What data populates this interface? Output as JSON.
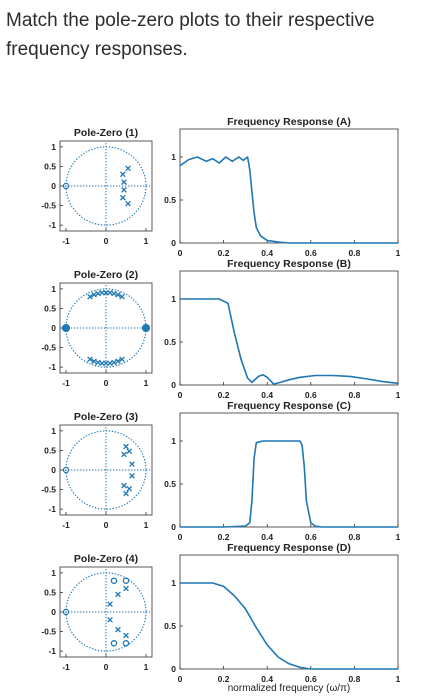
{
  "question": "Match the pole-zero plots to their respective frequency responses.",
  "colors": {
    "accent": "#1f77b4",
    "axis": "#333333",
    "text": "#222222"
  },
  "panels": [
    {
      "pz_title": "Pole-Zero (1)",
      "fr_title": "Frequency Response (A)",
      "poles": [
        [
          0.55,
          0.45
        ],
        [
          0.42,
          0.3
        ],
        [
          0.45,
          0.1
        ],
        [
          0.45,
          -0.1
        ],
        [
          0.42,
          -0.3
        ],
        [
          0.55,
          -0.45
        ]
      ],
      "zeros": [
        [
          -1,
          0
        ]
      ],
      "response": [
        [
          0,
          0.9
        ],
        [
          0.04,
          0.97
        ],
        [
          0.08,
          1.0
        ],
        [
          0.12,
          0.95
        ],
        [
          0.15,
          0.98
        ],
        [
          0.18,
          0.93
        ],
        [
          0.21,
          1.0
        ],
        [
          0.24,
          0.95
        ],
        [
          0.27,
          1.0
        ],
        [
          0.29,
          0.96
        ],
        [
          0.31,
          1.0
        ],
        [
          0.32,
          0.85
        ],
        [
          0.33,
          0.6
        ],
        [
          0.34,
          0.35
        ],
        [
          0.35,
          0.18
        ],
        [
          0.37,
          0.08
        ],
        [
          0.4,
          0.03
        ],
        [
          0.45,
          0.01
        ],
        [
          0.5,
          0.0
        ],
        [
          1.0,
          0.0
        ]
      ]
    },
    {
      "pz_title": "Pole-Zero (2)",
      "fr_title": "Frequency Response (B)",
      "poles": [
        [
          -0.4,
          0.8
        ],
        [
          -0.3,
          0.85
        ],
        [
          -0.2,
          0.88
        ],
        [
          -0.1,
          0.9
        ],
        [
          0,
          0.9
        ],
        [
          0.1,
          0.9
        ],
        [
          0.2,
          0.88
        ],
        [
          0.3,
          0.85
        ],
        [
          0.4,
          0.8
        ],
        [
          -0.4,
          -0.8
        ],
        [
          -0.3,
          -0.85
        ],
        [
          -0.2,
          -0.88
        ],
        [
          -0.1,
          -0.9
        ],
        [
          0,
          -0.9
        ],
        [
          0.1,
          -0.9
        ],
        [
          0.2,
          -0.88
        ],
        [
          0.3,
          -0.85
        ],
        [
          0.4,
          -0.8
        ]
      ],
      "zeros": [
        [
          -1,
          0
        ],
        [
          1,
          0
        ]
      ],
      "response": [
        [
          0,
          1.0
        ],
        [
          0.1,
          1.0
        ],
        [
          0.18,
          1.0
        ],
        [
          0.22,
          0.95
        ],
        [
          0.25,
          0.6
        ],
        [
          0.28,
          0.3
        ],
        [
          0.31,
          0.08
        ],
        [
          0.33,
          0.03
        ],
        [
          0.36,
          0.1
        ],
        [
          0.38,
          0.12
        ],
        [
          0.4,
          0.09
        ],
        [
          0.43,
          0.01
        ],
        [
          0.46,
          0.03
        ],
        [
          0.5,
          0.06
        ],
        [
          0.55,
          0.09
        ],
        [
          0.62,
          0.11
        ],
        [
          0.7,
          0.11
        ],
        [
          0.78,
          0.1
        ],
        [
          0.86,
          0.07
        ],
        [
          0.93,
          0.04
        ],
        [
          1.0,
          0.02
        ]
      ]
    },
    {
      "pz_title": "Pole-Zero (3)",
      "fr_title": "Frequency Response (C)",
      "poles": [
        [
          0.5,
          0.6
        ],
        [
          0.58,
          0.48
        ],
        [
          0.45,
          0.4
        ],
        [
          0.65,
          0.15
        ],
        [
          0.65,
          -0.15
        ],
        [
          0.45,
          -0.4
        ],
        [
          0.58,
          -0.48
        ],
        [
          0.5,
          -0.6
        ]
      ],
      "zeros": [
        [
          -1,
          0
        ]
      ],
      "response": [
        [
          0,
          0.0
        ],
        [
          0.2,
          0.0
        ],
        [
          0.3,
          0.01
        ],
        [
          0.32,
          0.05
        ],
        [
          0.33,
          0.3
        ],
        [
          0.34,
          0.8
        ],
        [
          0.35,
          0.98
        ],
        [
          0.38,
          1.0
        ],
        [
          0.45,
          1.0
        ],
        [
          0.52,
          1.0
        ],
        [
          0.55,
          1.0
        ],
        [
          0.56,
          0.95
        ],
        [
          0.57,
          0.7
        ],
        [
          0.58,
          0.3
        ],
        [
          0.6,
          0.05
        ],
        [
          0.62,
          0.01
        ],
        [
          0.65,
          0.0
        ],
        [
          1.0,
          0.0
        ]
      ]
    },
    {
      "pz_title": "Pole-Zero (4)",
      "fr_title": "Frequency Response (D)",
      "poles": [
        [
          0.5,
          0.6
        ],
        [
          0.3,
          0.45
        ],
        [
          0.1,
          0.2
        ],
        [
          0.1,
          -0.2
        ],
        [
          0.3,
          -0.45
        ],
        [
          0.5,
          -0.6
        ]
      ],
      "zeros": [
        [
          -1,
          0
        ],
        [
          0.2,
          0.8
        ],
        [
          0.5,
          0.8
        ],
        [
          0.5,
          -0.8
        ],
        [
          0.2,
          -0.8
        ]
      ],
      "response": [
        [
          0,
          1.0
        ],
        [
          0.1,
          1.0
        ],
        [
          0.15,
          1.0
        ],
        [
          0.2,
          0.96
        ],
        [
          0.25,
          0.85
        ],
        [
          0.3,
          0.7
        ],
        [
          0.35,
          0.48
        ],
        [
          0.4,
          0.28
        ],
        [
          0.45,
          0.14
        ],
        [
          0.5,
          0.06
        ],
        [
          0.55,
          0.02
        ],
        [
          0.6,
          0.0
        ],
        [
          1.0,
          0.0
        ]
      ]
    }
  ],
  "pz_ticks_y": [
    "1",
    "0.5",
    "0",
    "-0.5",
    "-1"
  ],
  "pz_ticks_x": [
    "-1",
    "0",
    "1"
  ],
  "fr_ticks_y": [
    "1",
    "0.5",
    "0"
  ],
  "fr_ticks_x": [
    "0",
    "0.2",
    "0.4",
    "0.6",
    "0.8",
    "1"
  ],
  "xlabel": "normalized frequency (ω/π)"
}
